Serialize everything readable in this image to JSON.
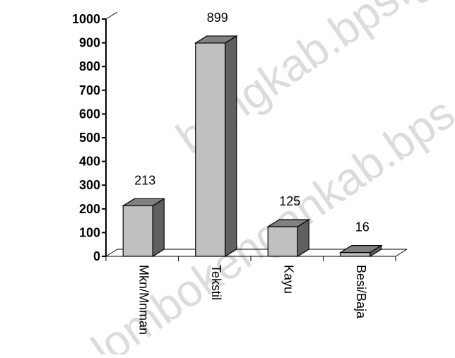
{
  "chart_data": {
    "type": "bar",
    "categories": [
      "Mkn/Mnman",
      "Tekstil",
      "Kayu",
      "Besi/Baja"
    ],
    "values": [
      213,
      899,
      125,
      16
    ],
    "data_labels": [
      "213",
      "899",
      "125",
      "16"
    ],
    "yticks": [
      "0",
      "100",
      "200",
      "300",
      "400",
      "500",
      "600",
      "700",
      "800",
      "900",
      "1000"
    ],
    "ylim": [
      0,
      1000
    ],
    "grid": false,
    "legend": "none",
    "title": "",
    "xlabel": "",
    "ylabel": ""
  },
  "watermark_text": [
    "bangkab.bps.go.id",
    "lombokengahkab.bps.go.id"
  ],
  "colors": {
    "bar_front": "#c0c0c0",
    "bar_side": "#606060",
    "bar_top": "#808080",
    "axis": "#000000",
    "watermark": "#dcdcdc"
  }
}
